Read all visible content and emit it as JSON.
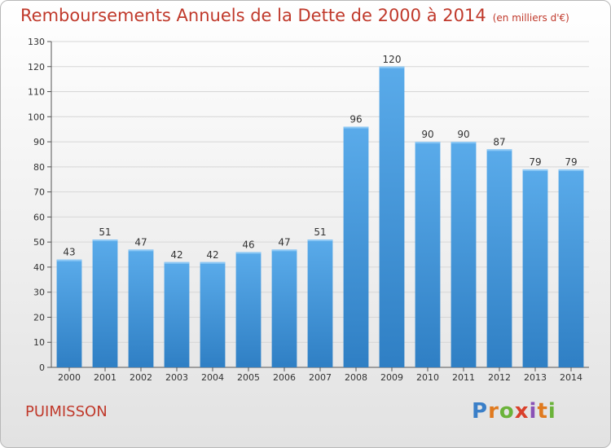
{
  "header": {
    "title": "Remboursements Annuels de la Dette de 2000 à 2014",
    "unit": "(en milliers d'€)"
  },
  "footer": {
    "commune": "PUIMISSON",
    "brand": "Proxiti"
  },
  "colors": {
    "bar_top": "#5aabea",
    "bar_bottom": "#2f7fc4",
    "title": "#c0392b"
  },
  "chart_data": {
    "type": "bar",
    "categories": [
      "2000",
      "2001",
      "2002",
      "2003",
      "2004",
      "2005",
      "2006",
      "2007",
      "2008",
      "2009",
      "2010",
      "2011",
      "2012",
      "2013",
      "2014"
    ],
    "values": [
      43,
      51,
      47,
      42,
      42,
      46,
      47,
      51,
      96,
      120,
      90,
      90,
      87,
      79,
      79
    ],
    "title": "Remboursements Annuels de la Dette de 2000 à 2014",
    "xlabel": "",
    "ylabel": "",
    "ylim": [
      0,
      130
    ],
    "yticks": [
      0,
      10,
      20,
      30,
      40,
      50,
      60,
      70,
      80,
      90,
      100,
      110,
      120,
      130
    ],
    "grid": true,
    "legend": "none"
  }
}
